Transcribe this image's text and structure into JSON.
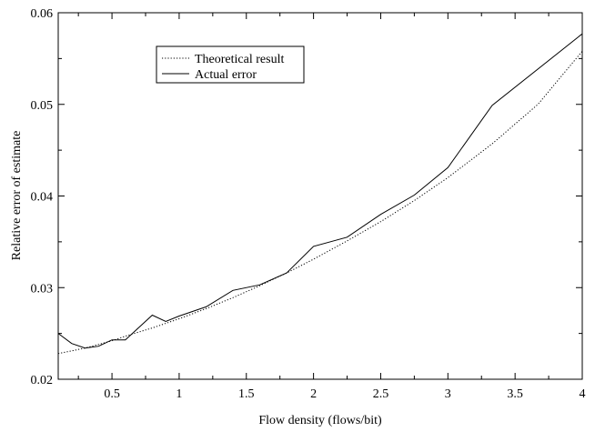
{
  "chart_data": {
    "type": "line",
    "title": "",
    "xlabel": "Flow density (flows/bit)",
    "ylabel": "Relative error of estimate",
    "xlim": [
      0.1,
      4.0
    ],
    "ylim": [
      0.02,
      0.06
    ],
    "xticks": [
      0.5,
      1,
      1.5,
      2,
      2.5,
      3,
      3.5,
      4
    ],
    "xtick_labels": [
      "0.5",
      "1",
      "1.5",
      "2",
      "2.5",
      "3",
      "3.5",
      "4"
    ],
    "yticks": [
      0.02,
      0.03,
      0.04,
      0.05,
      0.06
    ],
    "ytick_labels": [
      "0.02",
      "0.03",
      "0.04",
      "0.05",
      "0.06"
    ],
    "grid": false,
    "legend_position": "top-left",
    "series": [
      {
        "name": "Theoretical result",
        "style": "dotted",
        "color": "#000000",
        "x": [
          0.1,
          0.2,
          0.3,
          0.4,
          0.5,
          0.6,
          0.8,
          1.0,
          1.2,
          1.4,
          1.6,
          1.8,
          2.0,
          2.25,
          2.5,
          2.75,
          3.0,
          3.33,
          3.67,
          4.0
        ],
        "y": [
          0.0228,
          0.0231,
          0.0234,
          0.0238,
          0.0242,
          0.0247,
          0.0256,
          0.0266,
          0.0277,
          0.0289,
          0.0302,
          0.0316,
          0.0331,
          0.0351,
          0.0372,
          0.0395,
          0.042,
          0.0457,
          0.05,
          0.0558
        ]
      },
      {
        "name": "Actual error",
        "style": "solid",
        "color": "#000000",
        "x": [
          0.1,
          0.2,
          0.3,
          0.4,
          0.5,
          0.6,
          0.8,
          0.9,
          1.0,
          1.2,
          1.4,
          1.6,
          1.8,
          2.0,
          2.25,
          2.5,
          2.75,
          3.0,
          3.33,
          4.0
        ],
        "y": [
          0.025,
          0.0239,
          0.0234,
          0.0236,
          0.0243,
          0.0243,
          0.027,
          0.0263,
          0.0269,
          0.0279,
          0.0297,
          0.0303,
          0.0316,
          0.0345,
          0.0355,
          0.038,
          0.0401,
          0.0431,
          0.0499,
          0.0577
        ]
      }
    ]
  }
}
